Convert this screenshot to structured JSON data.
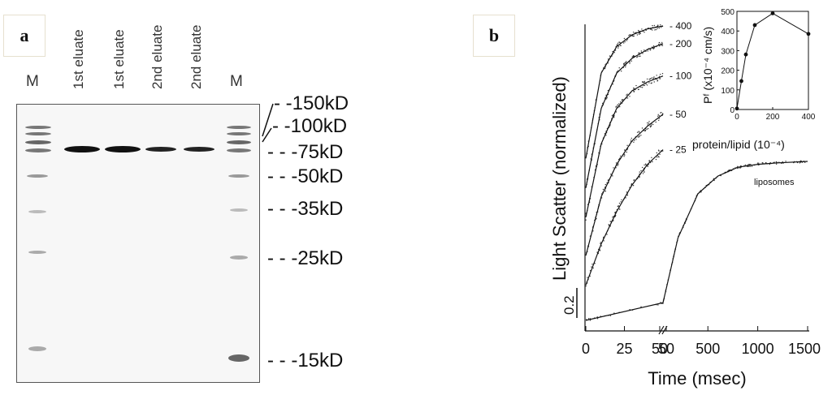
{
  "panel_a": {
    "label": "a",
    "lanes": [
      "M",
      "1st eluate",
      "1st eluate",
      "2nd eluate",
      "2nd eluate",
      "M"
    ],
    "markers": [
      "150kD",
      "100kD",
      "75kD",
      "50kD",
      "35kD",
      "25kD",
      "15kD"
    ]
  },
  "panel_b": {
    "label": "b",
    "chart_data": [
      {
        "type": "scatter",
        "ylabel": "Light Scatter (normalized)",
        "xlabel": "Time (msec)",
        "scale_bar_label": "0.2",
        "x_ticks_left": [
          "0",
          "25",
          "50"
        ],
        "x_ticks_right": [
          "50",
          "500",
          "1000",
          "1500"
        ],
        "x_axis_break": true,
        "series": [
          {
            "name": "400",
            "x": [
              0,
              10,
              20,
              30,
              40,
              50
            ],
            "y": [
              0.55,
              0.84,
              0.93,
              0.97,
              0.99,
              1.0
            ]
          },
          {
            "name": "200",
            "x": [
              0,
              10,
              20,
              30,
              40,
              50
            ],
            "y": [
              0.45,
              0.72,
              0.84,
              0.89,
              0.92,
              0.94
            ]
          },
          {
            "name": "100",
            "x": [
              0,
              10,
              20,
              30,
              40,
              50
            ],
            "y": [
              0.35,
              0.6,
              0.72,
              0.78,
              0.81,
              0.83
            ]
          },
          {
            "name": "50",
            "x": [
              0,
              10,
              20,
              30,
              40,
              50
            ],
            "y": [
              0.22,
              0.42,
              0.53,
              0.61,
              0.66,
              0.7
            ]
          },
          {
            "name": "25",
            "x": [
              0,
              10,
              20,
              30,
              40,
              50
            ],
            "y": [
              0.12,
              0.26,
              0.37,
              0.46,
              0.53,
              0.58
            ]
          },
          {
            "name": "liposomes",
            "x": [
              0,
              50,
              200,
              400,
              600,
              800,
              1000,
              1200,
              1500
            ],
            "y": [
              0.0,
              0.06,
              0.28,
              0.43,
              0.49,
              0.52,
              0.53,
              0.535,
              0.54
            ]
          }
        ]
      },
      {
        "type": "line",
        "xlabel": "protein/lipid (10⁻⁴)",
        "ylabel": "Pᶠ (x10⁻⁴ cm/s)",
        "x": [
          0,
          25,
          50,
          100,
          200,
          400
        ],
        "y": [
          5,
          145,
          280,
          430,
          490,
          385
        ],
        "xlim": [
          0,
          400
        ],
        "ylim": [
          0,
          500
        ],
        "x_ticks": [
          "0",
          "200",
          "400"
        ],
        "y_ticks": [
          "0",
          "100",
          "200",
          "300",
          "400",
          "500"
        ]
      }
    ]
  }
}
